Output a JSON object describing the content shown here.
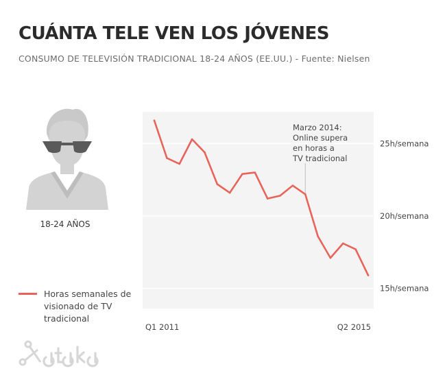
{
  "title": "CUÁNTA TELE VEN LOS JÓVENES",
  "subtitle": "CONSUMO DE TELEVISIÓN TRADICIONAL 18-24 AÑOS (EE.UU.) - Fuente: Nielsen",
  "person_label": "18-24 AÑOS",
  "legend_text": "Horas semanales de visionado de TV tradicional",
  "watermark_text": "xataka",
  "colors": {
    "line": "#e8635a",
    "plot_bg": "#f4f4f4",
    "grid": "#ffffff",
    "text": "#2b2b2b",
    "muted": "#6b6b6b",
    "icon": "#cfcfcf"
  },
  "chart_data": {
    "type": "line",
    "title": "",
    "xlabel": "",
    "ylabel": "",
    "x_tick_labels": [
      "Q1 2011",
      "Q2 2015"
    ],
    "y_ticks": [
      {
        "value": 25,
        "label": "25h/semana"
      },
      {
        "value": 20,
        "label": "20h/semana"
      },
      {
        "value": 15,
        "label": "15h/semana"
      }
    ],
    "ylim": [
      13.6,
      27.2
    ],
    "grid": true,
    "x": [
      "Q1 2011",
      "Q2 2011",
      "Q3 2011",
      "Q4 2011",
      "Q1 2012",
      "Q2 2012",
      "Q3 2012",
      "Q4 2012",
      "Q1 2013",
      "Q2 2013",
      "Q3 2013",
      "Q4 2013",
      "Q1 2014",
      "Q2 2014",
      "Q3 2014",
      "Q4 2014",
      "Q1 2015",
      "Q2 2015"
    ],
    "series": [
      {
        "values": [
          26.6,
          24.0,
          23.6,
          25.3,
          24.4,
          22.2,
          21.6,
          22.9,
          23.0,
          21.2,
          21.4,
          22.1,
          21.5,
          18.6,
          17.1,
          18.1,
          17.7,
          15.9
        ]
      }
    ],
    "annotation": {
      "x": "Q1 2014",
      "lines": [
        "Marzo 2014:",
        "Online supera",
        "en horas a",
        "TV tradicional"
      ]
    }
  }
}
